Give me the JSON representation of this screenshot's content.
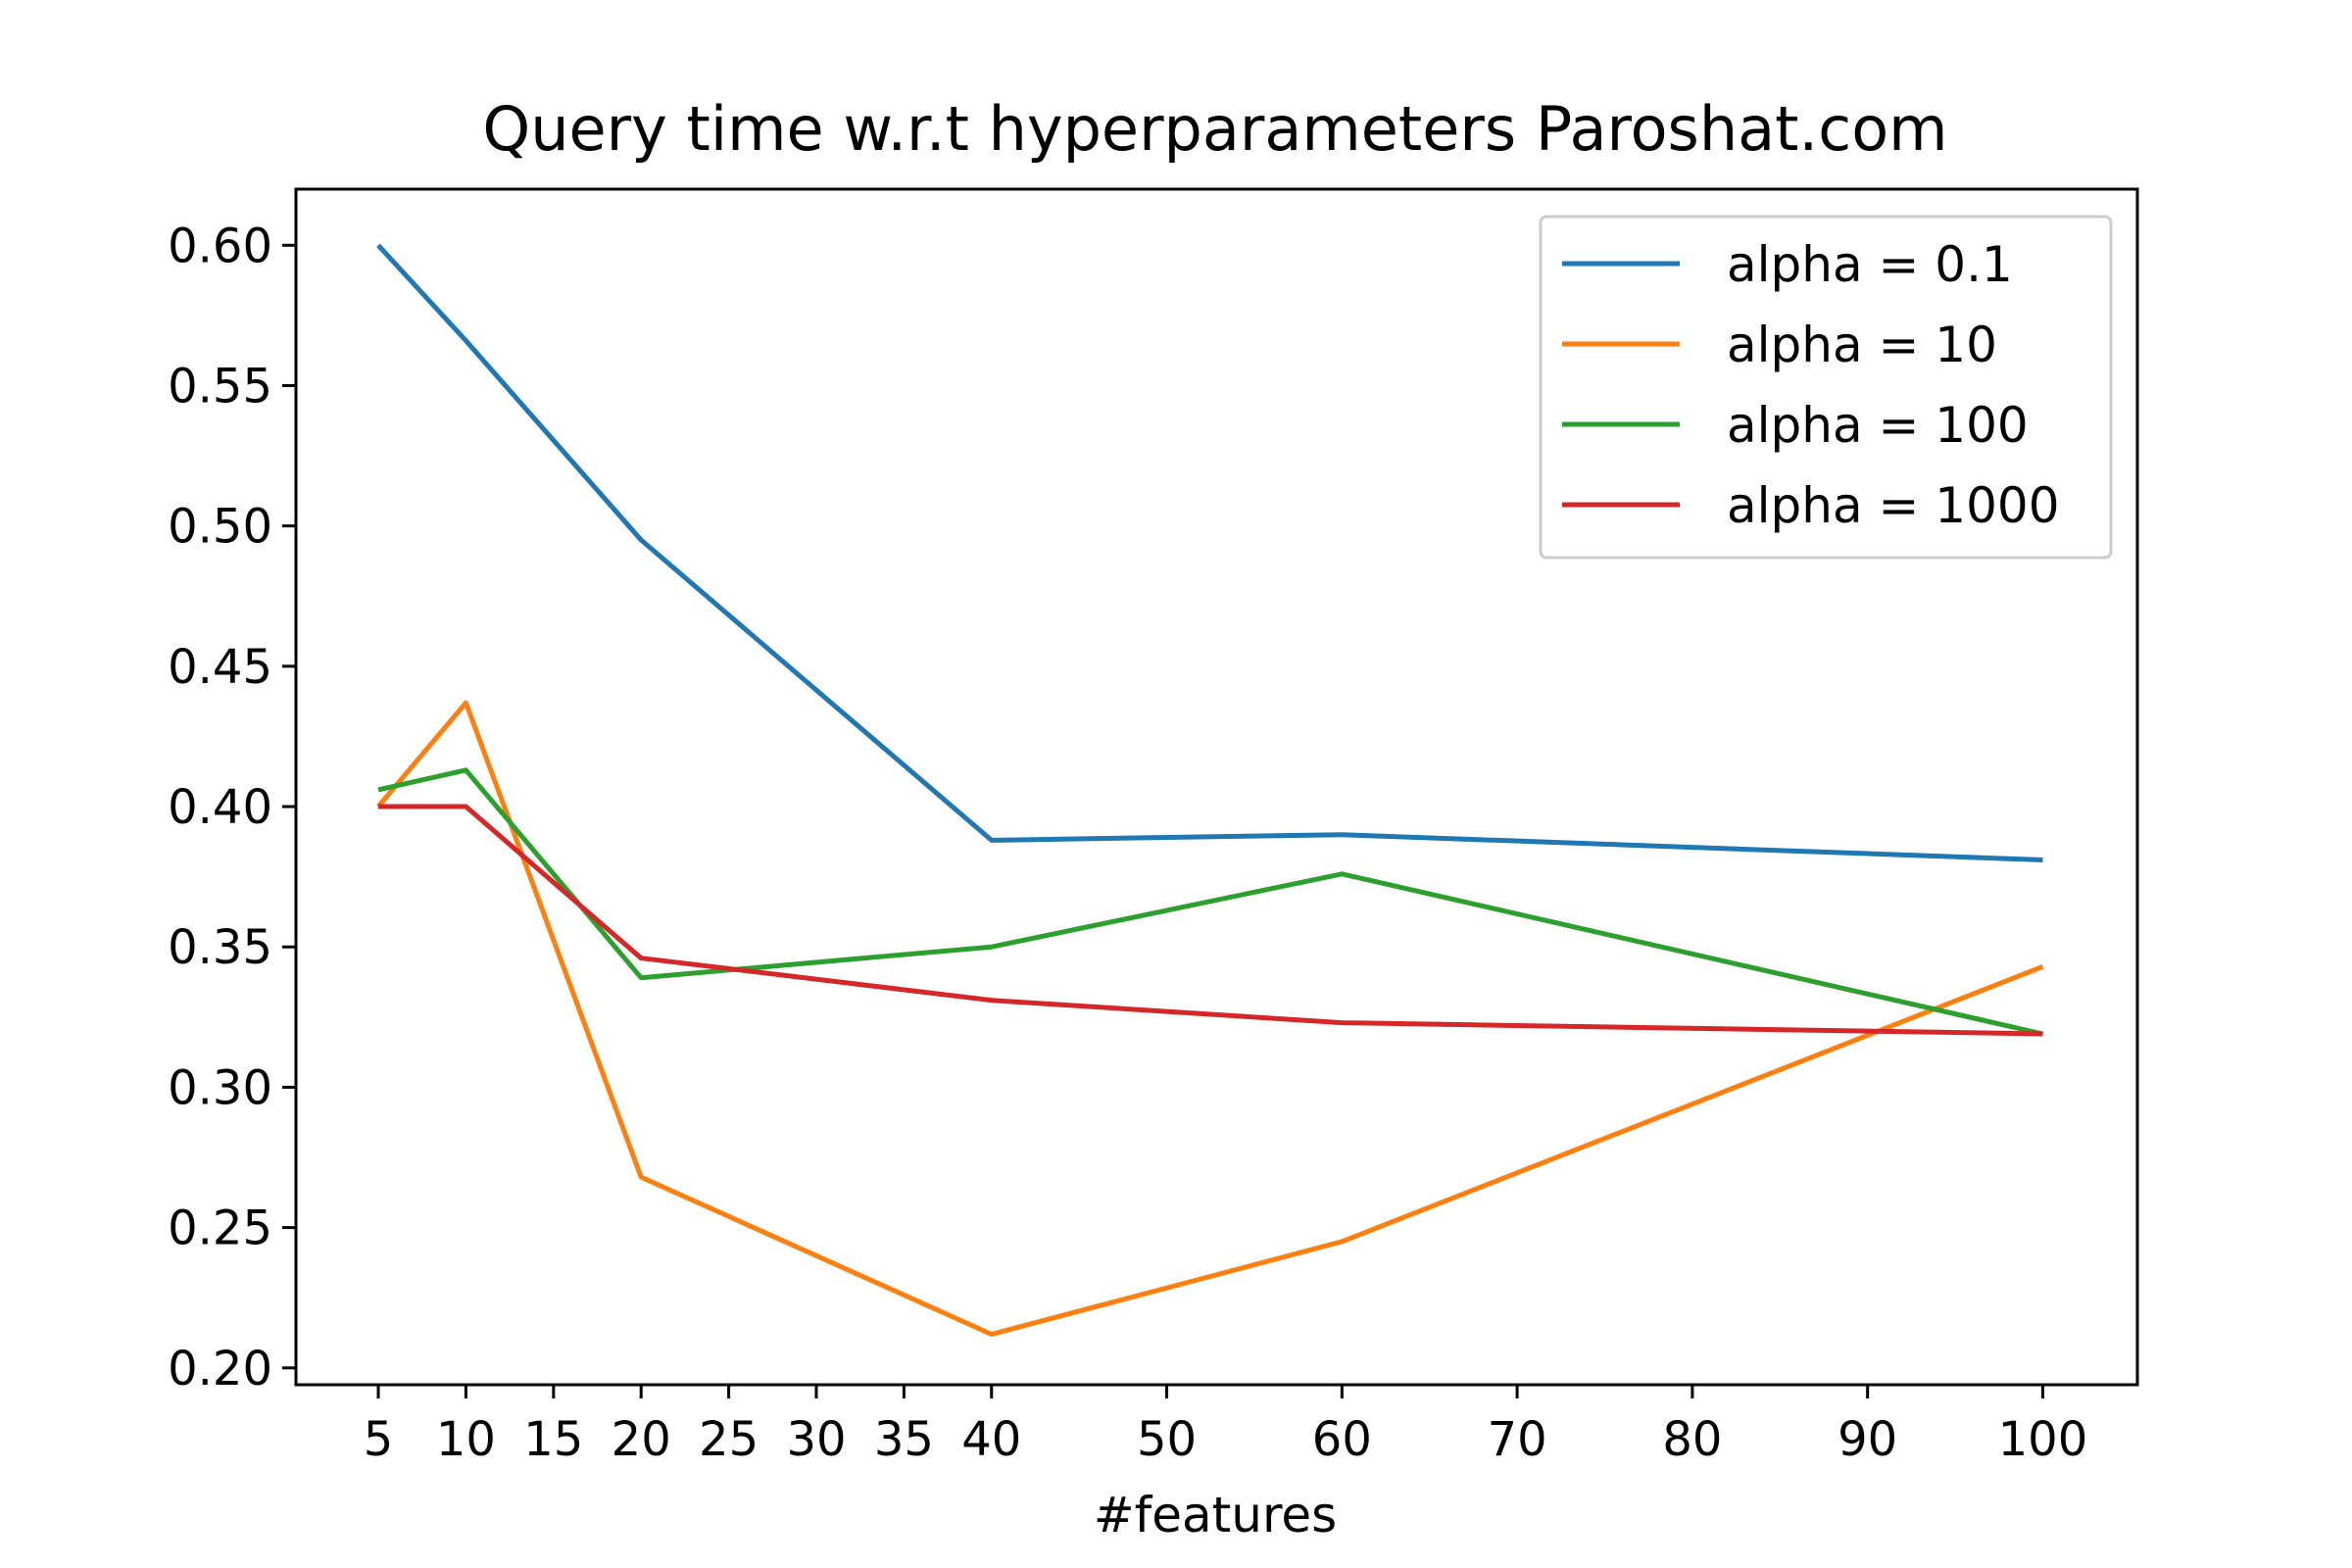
{
  "chart_data": {
    "type": "line",
    "title": "Query time w.r.t hyperparameters Paroshat.com",
    "xlabel": "#features",
    "ylabel": "",
    "x": [
      5,
      10,
      20,
      40,
      60,
      100
    ],
    "xlim": [
      0.3,
      105.4
    ],
    "ylim": [
      0.194,
      0.62
    ],
    "xticks": [
      "5",
      "10",
      "15",
      "20",
      "25",
      "30",
      "35",
      "40",
      "50",
      "60",
      "70",
      "80",
      "90",
      "100"
    ],
    "yticks": [
      "0.20",
      "0.25",
      "0.30",
      "0.35",
      "0.40",
      "0.45",
      "0.50",
      "0.55",
      "0.60"
    ],
    "grid": false,
    "legend_position": "top-right",
    "series": [
      {
        "name": "alpha = 0.1",
        "color": "#1f77b4",
        "values": [
          0.6,
          0.566,
          0.495,
          0.388,
          0.39,
          0.381
        ]
      },
      {
        "name": "alpha = 10",
        "color": "#ff7f0e",
        "values": [
          0.4,
          0.437,
          0.268,
          0.212,
          0.245,
          0.343
        ]
      },
      {
        "name": "alpha = 100",
        "color": "#2ca02c",
        "values": [
          0.406,
          0.413,
          0.339,
          0.35,
          0.376,
          0.319
        ]
      },
      {
        "name": "alpha = 1000",
        "color": "#d62728",
        "values": [
          0.4,
          0.4,
          0.346,
          0.331,
          0.323,
          0.319
        ]
      }
    ]
  }
}
